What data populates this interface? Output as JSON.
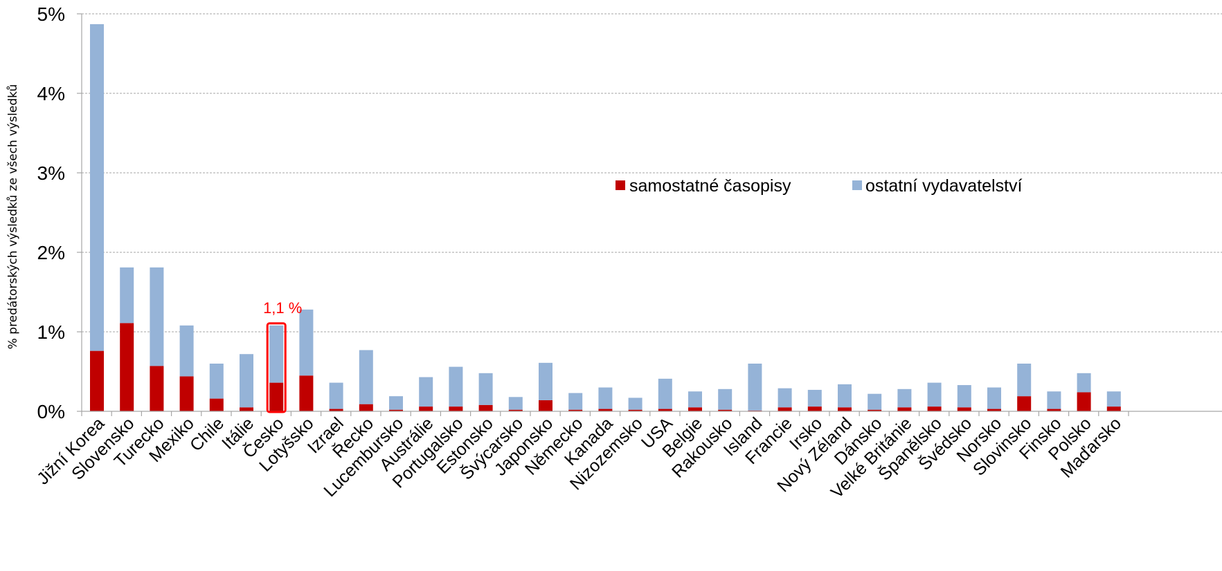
{
  "chart_data": {
    "type": "bar",
    "stacked": true,
    "ylabel": "% predátorských výsledků ze všech výsledků",
    "xlabel": "",
    "ylim": [
      0,
      5
    ],
    "yticks": [
      "0%",
      "1%",
      "2%",
      "3%",
      "4%",
      "5%"
    ],
    "grid": true,
    "legend_position": "top-right",
    "categories": [
      "Jižní Korea",
      "Slovensko",
      "Turecko",
      "Mexiko",
      "Chile",
      "Itálie",
      "Česko",
      "Lotyšsko",
      "Izrael",
      "Řecko",
      "Lucembursko",
      "Austrálie",
      "Portugalsko",
      "Estonsko",
      "Švýcarsko",
      "Japonsko",
      "Německo",
      "Kanada",
      "Nizozemsko",
      "USA",
      "Belgie",
      "Rakousko",
      "Island",
      "Francie",
      "Irsko",
      "Nový Zéland",
      "Dánsko",
      "Velké Británie",
      "Španělsko",
      "Švédsko",
      "Norsko",
      "Slovinsko",
      "Finsko",
      "Polsko",
      "Maďarsko"
    ],
    "series": [
      {
        "name": "samostatné časopisy",
        "color": "#c00000",
        "values": [
          0.76,
          1.11,
          0.57,
          0.44,
          0.16,
          0.05,
          0.36,
          0.45,
          0.03,
          0.09,
          0.02,
          0.06,
          0.06,
          0.08,
          0.02,
          0.14,
          0.02,
          0.03,
          0.02,
          0.03,
          0.05,
          0.02,
          0.01,
          0.05,
          0.06,
          0.05,
          0.02,
          0.05,
          0.06,
          0.05,
          0.03,
          0.19,
          0.03,
          0.24,
          0.06
        ]
      },
      {
        "name": "ostatní vydavatelství",
        "color": "#95b3d7",
        "values": [
          4.11,
          0.7,
          1.24,
          0.64,
          0.44,
          0.67,
          0.72,
          0.83,
          0.33,
          0.68,
          0.17,
          0.37,
          0.5,
          0.4,
          0.16,
          0.47,
          0.21,
          0.27,
          0.15,
          0.38,
          0.2,
          0.26,
          0.59,
          0.24,
          0.21,
          0.29,
          0.2,
          0.23,
          0.3,
          0.28,
          0.27,
          0.41,
          0.22,
          0.24,
          0.19
        ]
      }
    ],
    "highlight": {
      "category": "Česko",
      "label": "1,1 %",
      "color": "#ff0000"
    }
  }
}
